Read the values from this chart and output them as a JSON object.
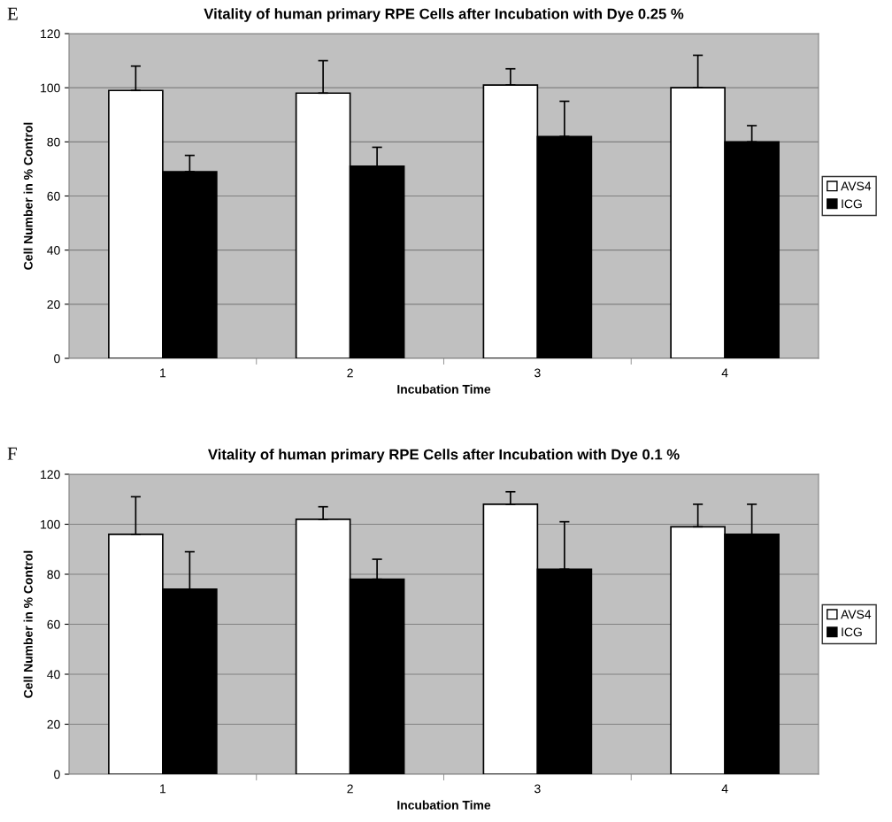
{
  "chart_data": [
    {
      "type": "bar",
      "title": "Vitality of human primary RPE Cells after Incubation with Dye 0.25 %",
      "xlabel": "Incubation Time",
      "ylabel": "Cell Number in % Control",
      "annotations": [
        "E"
      ],
      "categories": [
        "1",
        "2",
        "3",
        "4"
      ],
      "ylim": [
        0,
        120
      ],
      "yticks": [
        0,
        20,
        40,
        60,
        80,
        100,
        120
      ],
      "grid": "y",
      "legend": "right",
      "series": [
        {
          "name": "AVS4",
          "color": "#ffffff",
          "values": [
            99,
            98,
            101,
            100
          ],
          "errors": [
            [
              99,
              108
            ],
            [
              98,
              110
            ],
            [
              101,
              107
            ],
            [
              100,
              112
            ]
          ]
        },
        {
          "name": "ICG",
          "color": "#000000",
          "values": [
            69,
            71,
            82,
            80
          ],
          "errors": [
            [
              69,
              75
            ],
            [
              71,
              78
            ],
            [
              82,
              95
            ],
            [
              80,
              86
            ]
          ]
        }
      ]
    },
    {
      "type": "bar",
      "title": "Vitality of human primary RPE Cells after Incubation with Dye 0.1 %",
      "xlabel": "Incubation Time",
      "ylabel": "Cell Number in % Control",
      "annotations": [
        "F"
      ],
      "categories": [
        "1",
        "2",
        "3",
        "4"
      ],
      "ylim": [
        0,
        120
      ],
      "yticks": [
        0,
        20,
        40,
        60,
        80,
        100,
        120
      ],
      "grid": "y",
      "legend": "right",
      "series": [
        {
          "name": "AVS4",
          "color": "#ffffff",
          "values": [
            96,
            102,
            108,
            99
          ],
          "errors": [
            [
              96,
              111
            ],
            [
              102,
              107
            ],
            [
              108,
              113
            ],
            [
              99,
              108
            ]
          ]
        },
        {
          "name": "ICG",
          "color": "#000000",
          "values": [
            74,
            78,
            82,
            96
          ],
          "errors": [
            [
              74,
              89
            ],
            [
              78,
              86
            ],
            [
              82,
              101
            ],
            [
              96,
              108
            ]
          ]
        }
      ]
    }
  ]
}
